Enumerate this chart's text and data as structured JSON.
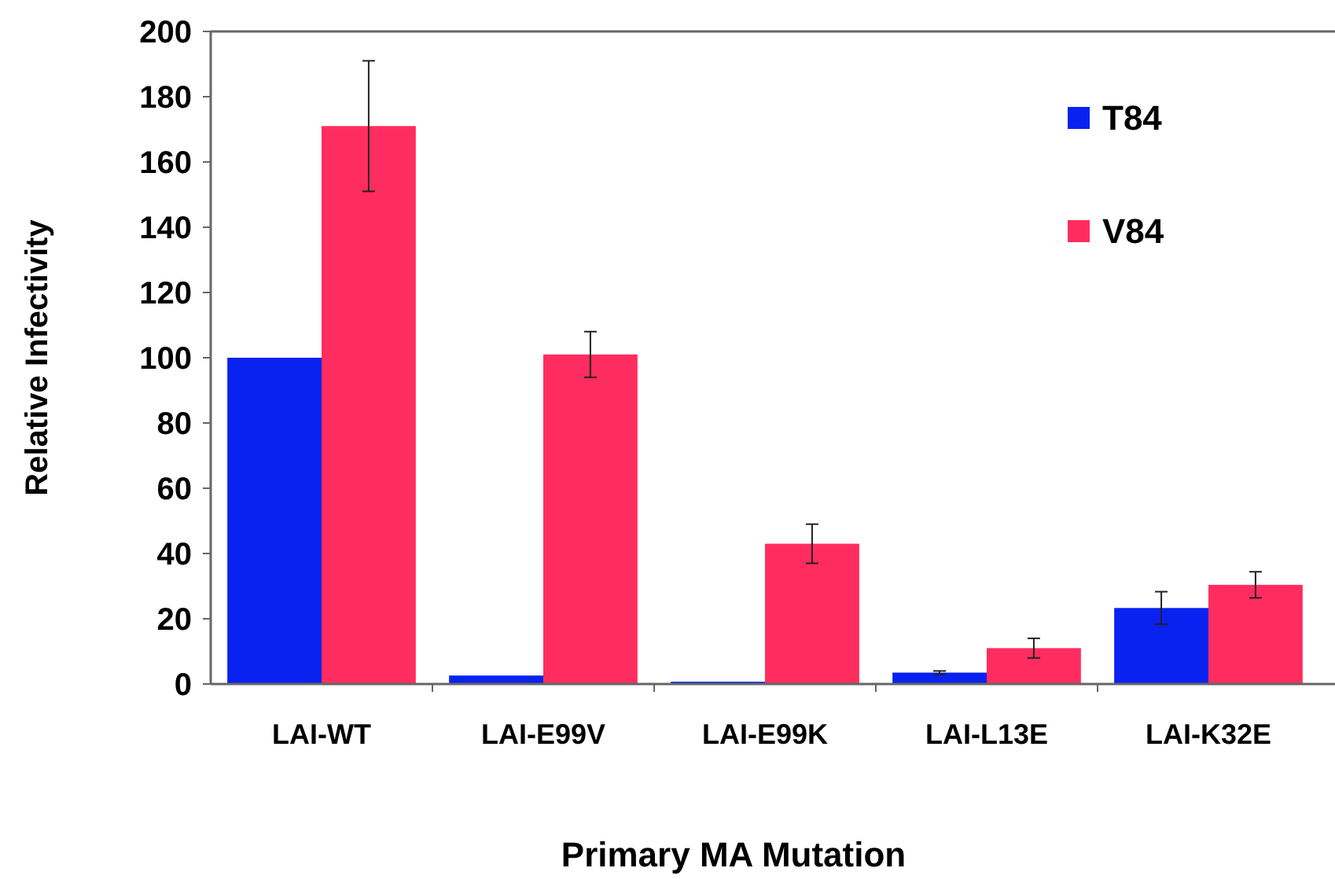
{
  "chart_data": {
    "type": "bar",
    "xlabel": "Primary MA Mutation",
    "ylabel": "Relative Infectivity",
    "categories": [
      "LAI-WT",
      "LAI-E99V",
      "LAI-E99K",
      "LAI-L13E",
      "LAI-K32E"
    ],
    "series": [
      {
        "name": "T84",
        "color": "#0a22f0",
        "values": [
          100,
          2.6,
          0.7,
          3.5,
          23.3
        ],
        "errors": [
          null,
          null,
          null,
          0.5,
          5
        ]
      },
      {
        "name": "V84",
        "color": "#ff2d5f",
        "values": [
          171,
          101,
          43,
          11,
          30.4
        ],
        "errors": [
          20,
          7,
          6,
          3,
          4
        ]
      }
    ],
    "ylim": [
      0,
      200
    ],
    "yticks": [
      0,
      20,
      40,
      60,
      80,
      100,
      120,
      140,
      160,
      180,
      200
    ],
    "grid": false,
    "legend": "top right"
  }
}
